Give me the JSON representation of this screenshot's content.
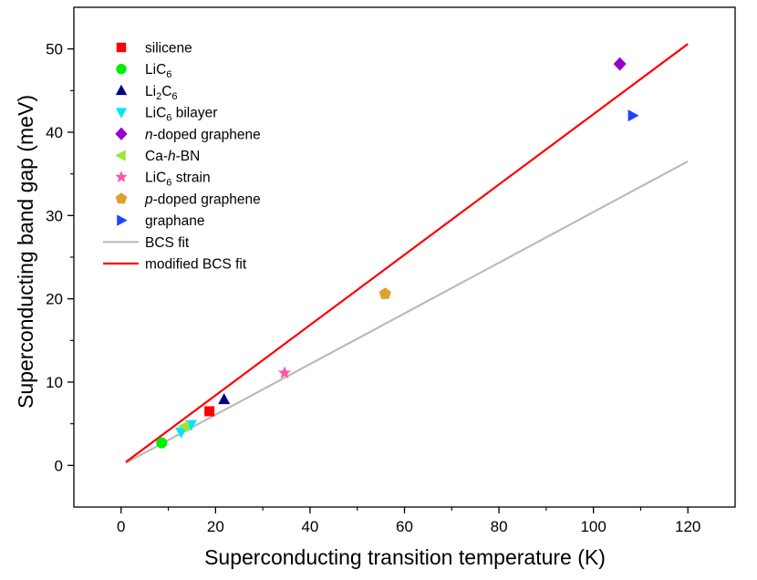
{
  "chart_data": {
    "type": "scatter",
    "xlabel": "Superconducting transition temperature (K)",
    "ylabel": "Superconducting band gap (meV)",
    "xlim": [
      -10,
      130
    ],
    "ylim": [
      -5,
      55
    ],
    "x_ticks": [
      0,
      20,
      40,
      60,
      80,
      100,
      120
    ],
    "y_ticks": [
      0,
      10,
      20,
      30,
      40,
      50
    ],
    "grid": false,
    "legend_position": "top-left",
    "series": [
      {
        "name": "silicene",
        "marker": "square",
        "color": "#ff0000",
        "points": [
          [
            18.7,
            6.5
          ]
        ]
      },
      {
        "name": "LiC6",
        "label_base": "LiC",
        "label_sub": "6",
        "label_after": "",
        "marker": "circle",
        "color": "#00ee00",
        "points": [
          [
            8.6,
            2.7
          ]
        ]
      },
      {
        "name": "Li2C6",
        "label_base": "Li",
        "label_sub": "2",
        "label_after": "C",
        "label_sub2": "6",
        "marker": "triangle-up",
        "color": "#000080",
        "points": [
          [
            21.8,
            7.9
          ]
        ]
      },
      {
        "name": "LiC6 bilayer",
        "label_base": "LiC",
        "label_sub": "6",
        "label_after": " bilayer",
        "marker": "triangle-down",
        "color": "#00e5ff",
        "points": [
          [
            12.7,
            4.0
          ],
          [
            14.8,
            4.9
          ]
        ]
      },
      {
        "name": "n-doped graphene",
        "label_italic": "n",
        "label_after": "-doped graphene",
        "marker": "diamond",
        "color": "#9900cc",
        "points": [
          [
            105.6,
            48.2
          ]
        ]
      },
      {
        "name": "Ca-h-BN",
        "label_base": "Ca-",
        "label_italic": "h",
        "label_after": "-BN",
        "marker": "triangle-left",
        "color": "#99e633",
        "points": [
          [
            13.4,
            4.7
          ]
        ]
      },
      {
        "name": "LiC6 strain",
        "label_base": "LiC",
        "label_sub": "6",
        "label_after": " strain",
        "marker": "star",
        "color": "#ff55aa",
        "points": [
          [
            34.6,
            11.1
          ]
        ]
      },
      {
        "name": "p-doped graphene",
        "label_italic": "p",
        "label_after": "-doped graphene",
        "marker": "pentagon",
        "color": "#e0a030",
        "points": [
          [
            55.9,
            20.6
          ]
        ]
      },
      {
        "name": "graphane",
        "marker": "triangle-right",
        "color": "#1a44ff",
        "points": [
          [
            108.3,
            42.0
          ]
        ]
      }
    ],
    "lines": [
      {
        "name": "BCS fit",
        "color": "#bbbbbb",
        "x": [
          1,
          120
        ],
        "y": [
          0.3,
          36.5
        ]
      },
      {
        "name": "modified BCS fit",
        "color": "#ff0000",
        "x": [
          1,
          120
        ],
        "y": [
          0.4,
          50.6
        ]
      }
    ]
  }
}
